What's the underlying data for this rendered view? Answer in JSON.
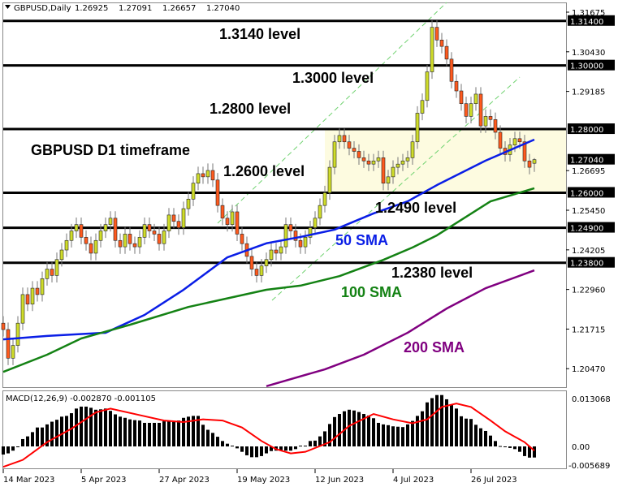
{
  "header": {
    "symbol": "GBPUSD,Daily",
    "open": "1.26925",
    "high": "1.27091",
    "low": "1.26657",
    "close": "1.27040"
  },
  "annotations": {
    "title": "GBPUSD D1 timeframe",
    "l1": "1.3140 level",
    "l2": "1.3000 level",
    "l3": "1.2800 level",
    "l4": "1.2600 level",
    "l5": "1.2490 level",
    "l6": "1.2380 level",
    "sma50": "50 SMA",
    "sma100": "100 SMA",
    "sma200": "200 SMA"
  },
  "colors": {
    "bull": "#cfdc2a",
    "bear": "#ff5a1e",
    "sma50": "#0a1ee6",
    "sma100": "#148214",
    "sma200": "#800080",
    "zone": "#fdfbe0",
    "channel": "#6fd26f",
    "signal": "#ff0000"
  },
  "chart_data": {
    "type": "candlestick",
    "ylim": [
      1.1992,
      1.3198
    ],
    "y_ticks": [
      "1.31675",
      "1.30430",
      "1.29185",
      "1.26695",
      "1.25450",
      "1.24205",
      "1.22960",
      "1.21715",
      "1.20470"
    ],
    "level_labels": [
      "1.31400",
      "1.30000",
      "1.28000",
      "1.27040",
      "1.26000",
      "1.24900",
      "1.23800"
    ],
    "levels": [
      1.314,
      1.3,
      1.28,
      1.26,
      1.249,
      1.238
    ],
    "zone": [
      1.26,
      1.28
    ],
    "x_ticks": [
      {
        "bar": 0,
        "label": "14 Mar 2023"
      },
      {
        "bar": 16,
        "label": "5 Apr 2023"
      },
      {
        "bar": 32,
        "label": "27 Apr 2023"
      },
      {
        "bar": 48,
        "label": "19 May 2023"
      },
      {
        "bar": 64,
        "label": "12 Jun 2023"
      },
      {
        "bar": 80,
        "label": "4 Jul 2023"
      },
      {
        "bar": 96,
        "label": "26 Jul 2023"
      }
    ],
    "close": [
      1.217,
      1.208,
      1.212,
      1.219,
      1.228,
      1.225,
      1.23,
      1.228,
      1.233,
      1.236,
      1.234,
      1.239,
      1.242,
      1.245,
      1.248,
      1.25,
      1.246,
      1.244,
      1.241,
      1.245,
      1.248,
      1.25,
      1.252,
      1.245,
      1.243,
      1.247,
      1.244,
      1.243,
      1.246,
      1.25,
      1.248,
      1.247,
      1.244,
      1.248,
      1.253,
      1.251,
      1.249,
      1.255,
      1.258,
      1.263,
      1.266,
      1.265,
      1.267,
      1.264,
      1.256,
      1.252,
      1.25,
      1.254,
      1.247,
      1.244,
      1.24,
      1.236,
      1.234,
      1.237,
      1.239,
      1.242,
      1.241,
      1.243,
      1.25,
      1.248,
      1.245,
      1.243,
      1.246,
      1.249,
      1.252,
      1.256,
      1.26,
      1.268,
      1.276,
      1.278,
      1.276,
      1.274,
      1.273,
      1.271,
      1.27,
      1.269,
      1.27,
      1.271,
      1.263,
      1.265,
      1.268,
      1.269,
      1.27,
      1.271,
      1.276,
      1.285,
      1.289,
      1.298,
      1.312,
      1.308,
      1.306,
      1.302,
      1.295,
      1.292,
      1.288,
      1.284,
      1.288,
      1.291,
      1.281,
      1.284,
      1.283,
      1.279,
      1.274,
      1.272,
      1.275,
      1.277,
      1.276,
      1.27,
      1.268,
      1.2704
    ],
    "sma50": [
      [
        0,
        1.2139
      ],
      [
        9,
        1.215
      ],
      [
        21,
        1.216
      ],
      [
        29,
        1.2216
      ],
      [
        37,
        1.2295
      ],
      [
        46,
        1.2397
      ],
      [
        54,
        1.2441
      ],
      [
        61,
        1.2461
      ],
      [
        68,
        1.2484
      ],
      [
        76,
        1.2535
      ],
      [
        83,
        1.2573
      ],
      [
        89,
        1.2624
      ],
      [
        99,
        1.2701
      ],
      [
        109,
        1.2767
      ]
    ],
    "sma100": [
      [
        0,
        1.2037
      ],
      [
        9,
        1.2091
      ],
      [
        16,
        1.2142
      ],
      [
        26,
        1.2185
      ],
      [
        38,
        1.2241
      ],
      [
        54,
        1.2295
      ],
      [
        61,
        1.2308
      ],
      [
        69,
        1.2338
      ],
      [
        78,
        1.2389
      ],
      [
        84,
        1.2428
      ],
      [
        89,
        1.2466
      ],
      [
        100,
        1.2573
      ],
      [
        109,
        1.2614
      ]
    ],
    "sma200": [
      [
        54,
        1.1992
      ],
      [
        66,
        1.2045
      ],
      [
        74,
        1.2091
      ],
      [
        83,
        1.216
      ],
      [
        91,
        1.2236
      ],
      [
        99,
        1.23
      ],
      [
        109,
        1.2356
      ]
    ],
    "macd": {
      "label": "MACD(12,26,9) -0.002870 -0.001105",
      "ylim": [
        -0.005689,
        0.013068
      ],
      "y_ticks": [
        "0.013068",
        "0.00",
        "-0.005689"
      ],
      "histogram": [
        -0.0021,
        -0.0018,
        -0.0011,
        0.0,
        0.0019,
        0.0026,
        0.0037,
        0.0049,
        0.0049,
        0.0057,
        0.0064,
        0.0069,
        0.0077,
        0.0079,
        0.0086,
        0.0098,
        0.0103,
        0.0103,
        0.01,
        0.0095,
        0.0096,
        0.0098,
        0.0092,
        0.0083,
        0.0077,
        0.0074,
        0.007,
        0.0068,
        0.0067,
        0.0061,
        0.0061,
        0.0061,
        0.0061,
        0.0065,
        0.0065,
        0.0063,
        0.0067,
        0.0074,
        0.0077,
        0.0079,
        0.0079,
        0.0056,
        0.0043,
        0.0035,
        0.0025,
        0.0014,
        0.0007,
        0.0002,
        -0.0005,
        -0.0014,
        -0.0023,
        -0.0028,
        -0.0028,
        -0.0025,
        -0.0018,
        -0.0012,
        -0.0011,
        -0.0011,
        -0.0011,
        -0.0011,
        -0.0007,
        0.0002,
        0.0002,
        0.0014,
        0.0015,
        0.0026,
        0.0039,
        0.0058,
        0.0076,
        0.0084,
        0.0091,
        0.0095,
        0.0093,
        0.0089,
        0.0084,
        0.008,
        0.0073,
        0.0061,
        0.0057,
        0.0055,
        0.0052,
        0.0051,
        0.005,
        0.0057,
        0.0066,
        0.0079,
        0.0091,
        0.0114,
        0.0125,
        0.0133,
        0.0133,
        0.0122,
        0.0108,
        0.0098,
        0.0078,
        0.0072,
        0.0071,
        0.0056,
        0.0047,
        0.004,
        0.0028,
        0.0014,
        0.0001,
        -0.0002,
        -0.0004,
        -0.0007,
        -0.0014,
        -0.0025,
        -0.0029,
        -0.00287
      ],
      "signal": [
        [
          0,
          -0.0053
        ],
        [
          4,
          -0.0035
        ],
        [
          9,
          0.0011
        ],
        [
          14,
          0.0046
        ],
        [
          19,
          0.0088
        ],
        [
          22,
          0.0098
        ],
        [
          28,
          0.0081
        ],
        [
          33,
          0.0067
        ],
        [
          37,
          0.0063
        ],
        [
          41,
          0.007
        ],
        [
          45,
          0.0067
        ],
        [
          49,
          0.0049
        ],
        [
          53,
          0.0014
        ],
        [
          56,
          -0.0007
        ],
        [
          59,
          -0.0018
        ],
        [
          62,
          -0.0014
        ],
        [
          67,
          0.0011
        ],
        [
          71,
          0.0053
        ],
        [
          76,
          0.0084
        ],
        [
          80,
          0.007
        ],
        [
          84,
          0.006
        ],
        [
          87,
          0.007
        ],
        [
          90,
          0.0102
        ],
        [
          93,
          0.0111
        ],
        [
          96,
          0.0102
        ],
        [
          100,
          0.0067
        ],
        [
          103,
          0.0039
        ],
        [
          107,
          0.0011
        ],
        [
          109,
          -0.001105
        ]
      ]
    }
  }
}
